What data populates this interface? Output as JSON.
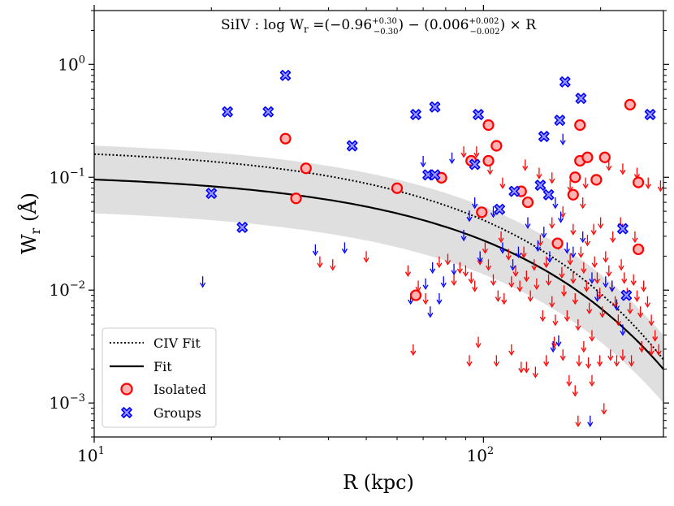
{
  "chart_data": {
    "type": "scatter",
    "title_prefix": "SiIV : log W",
    "title_sub": "r",
    "title_eq": " =(−0.96",
    "title_sup1": "+0.30",
    "title_sub1": "−0.30",
    "title_mid": ") − (0.006",
    "title_sup2": "+0.002",
    "title_sub2": "−0.002",
    "title_end": ") × R",
    "xlabel": "R (kpc)",
    "ylabel_main": "W",
    "ylabel_sub": "r",
    "ylabel_unit": " (Å)",
    "xscale": "log",
    "yscale": "log",
    "xlim": [
      10,
      290
    ],
    "ylim": [
      0.0005,
      3.0
    ],
    "x_ticks": [
      {
        "value": 10,
        "base": "10",
        "exp": "1"
      },
      {
        "value": 100,
        "base": "10",
        "exp": "2"
      }
    ],
    "y_ticks": [
      {
        "value": 0.001,
        "base": "10",
        "exp": "−3"
      },
      {
        "value": 0.01,
        "base": "10",
        "exp": "−2"
      },
      {
        "value": 0.1,
        "base": "10",
        "exp": "−1"
      },
      {
        "value": 1,
        "base": "10",
        "exp": "0"
      }
    ],
    "fit": {
      "intercept": -0.96,
      "slope": -0.006,
      "band_upper_intercept": -0.66,
      "band_lower_intercept": -1.26
    },
    "civ_fit": {
      "intercept": -0.73,
      "slope": -0.0065
    },
    "legend": {
      "position": "lower-left",
      "entries": [
        {
          "label": "CIV Fit",
          "style": "dotted"
        },
        {
          "label": "Fit",
          "style": "solid"
        },
        {
          "label": "Isolated",
          "style": "circle"
        },
        {
          "label": "Groups",
          "style": "cross"
        }
      ]
    },
    "colors": {
      "isolated": "#ff0000",
      "isolated_fill": "#ffb3b3",
      "groups": "#0000ff",
      "groups_fill": "#9999ff",
      "band": "#d9d9d9",
      "upper_red": "#ff0000",
      "upper_blue": "#0000ff"
    },
    "series": [
      {
        "name": "Isolated",
        "points": [
          [
            31,
            0.22
          ],
          [
            35,
            0.12
          ],
          [
            33,
            0.065
          ],
          [
            60,
            0.08
          ],
          [
            67,
            0.009
          ],
          [
            78,
            0.099
          ],
          [
            93,
            0.14
          ],
          [
            99,
            0.049
          ],
          [
            103,
            0.29
          ],
          [
            103,
            0.14
          ],
          [
            108,
            0.19
          ],
          [
            125,
            0.075
          ],
          [
            130,
            0.06
          ],
          [
            155,
            0.026
          ],
          [
            170,
            0.07
          ],
          [
            172,
            0.1
          ],
          [
            177,
            0.29
          ],
          [
            177,
            0.14
          ],
          [
            185,
            0.15
          ],
          [
            195,
            0.095
          ],
          [
            205,
            0.15
          ],
          [
            238,
            0.44
          ],
          [
            250,
            0.09
          ],
          [
            250,
            0.023
          ]
        ]
      },
      {
        "name": "Groups",
        "points": [
          [
            20,
            0.072
          ],
          [
            22,
            0.38
          ],
          [
            24,
            0.036
          ],
          [
            28,
            0.38
          ],
          [
            31,
            0.8
          ],
          [
            46,
            0.19
          ],
          [
            67,
            0.36
          ],
          [
            72,
            0.105
          ],
          [
            75,
            0.105
          ],
          [
            75,
            0.42
          ],
          [
            95,
            0.13
          ],
          [
            97,
            0.36
          ],
          [
            110,
            0.052
          ],
          [
            120,
            0.075
          ],
          [
            140,
            0.085
          ],
          [
            143,
            0.23
          ],
          [
            147,
            0.07
          ],
          [
            157,
            0.32
          ],
          [
            162,
            0.7
          ],
          [
            178,
            0.5
          ],
          [
            228,
            0.035
          ],
          [
            233,
            0.009
          ],
          [
            268,
            0.36
          ]
        ]
      },
      {
        "name": "Isolated upper limits",
        "points": [
          [
            89,
            0.17
          ],
          [
            96,
            0.17
          ],
          [
            104,
            0.12
          ],
          [
            112,
            0.09
          ],
          [
            128,
            0.13
          ],
          [
            139,
            0.11
          ],
          [
            150,
            0.1
          ],
          [
            167,
            0.085
          ],
          [
            183,
            0.09
          ],
          [
            210,
            0.13
          ],
          [
            228,
            0.12
          ],
          [
            248,
            0.11
          ],
          [
            265,
            0.09
          ],
          [
            285,
            0.085
          ],
          [
            38,
            0.018
          ],
          [
            41,
            0.017
          ],
          [
            50,
            0.02
          ],
          [
            64,
            0.015
          ],
          [
            68,
            0.011
          ],
          [
            71,
            0.0085
          ],
          [
            77,
            0.018
          ],
          [
            81,
            0.019
          ],
          [
            84,
            0.0125
          ],
          [
            87,
            0.016
          ],
          [
            90,
            0.015
          ],
          [
            93,
            0.013
          ],
          [
            95,
            0.011
          ],
          [
            98,
            0.019
          ],
          [
            101,
            0.024
          ],
          [
            103,
            0.017
          ],
          [
            106,
            0.0125
          ],
          [
            109,
            0.009
          ],
          [
            111,
            0.03
          ],
          [
            113,
            0.0085
          ],
          [
            116,
            0.021
          ],
          [
            118,
            0.012
          ],
          [
            121,
            0.015
          ],
          [
            124,
            0.011
          ],
          [
            127,
            0.022
          ],
          [
            129,
            0.0135
          ],
          [
            132,
            0.009
          ],
          [
            135,
            0.017
          ],
          [
            137,
            0.0115
          ],
          [
            140,
            0.028
          ],
          [
            142,
            0.006
          ],
          [
            145,
            0.018
          ],
          [
            147,
            0.0125
          ],
          [
            150,
            0.008
          ],
          [
            153,
            0.0055
          ],
          [
            156,
            0.026
          ],
          [
            159,
            0.0145
          ],
          [
            161,
            0.01
          ],
          [
            164,
            0.006
          ],
          [
            167,
            0.019
          ],
          [
            170,
            0.013
          ],
          [
            172,
            0.0085
          ],
          [
            175,
            0.005
          ],
          [
            178,
            0.022
          ],
          [
            181,
            0.016
          ],
          [
            184,
            0.011
          ],
          [
            187,
            0.007
          ],
          [
            190,
            0.004
          ],
          [
            193,
            0.018
          ],
          [
            196,
            0.013
          ],
          [
            199,
            0.0095
          ],
          [
            202,
            0.0065
          ],
          [
            206,
            0.02
          ],
          [
            210,
            0.015
          ],
          [
            214,
            0.011
          ],
          [
            218,
            0.008
          ],
          [
            222,
            0.0055
          ],
          [
            226,
            0.017
          ],
          [
            230,
            0.013
          ],
          [
            234,
            0.0095
          ],
          [
            238,
            0.007
          ],
          [
            243,
            0.0125
          ],
          [
            248,
            0.009
          ],
          [
            253,
            0.0065
          ],
          [
            258,
            0.011
          ],
          [
            264,
            0.008
          ],
          [
            270,
            0.0055
          ],
          [
            276,
            0.004
          ],
          [
            282,
            0.003
          ],
          [
            66,
            0.003
          ],
          [
            92,
            0.0024
          ],
          [
            97,
            0.0035
          ],
          [
            108,
            0.0024
          ],
          [
            118,
            0.003
          ],
          [
            125,
            0.0021
          ],
          [
            129,
            0.0021
          ],
          [
            136,
            0.0019
          ],
          [
            145,
            0.0024
          ],
          [
            152,
            0.0035
          ],
          [
            160,
            0.0027
          ],
          [
            166,
            0.0016
          ],
          [
            172,
            0.0013
          ],
          [
            176,
            0.0024
          ],
          [
            181,
            0.0032
          ],
          [
            186,
            0.0023
          ],
          [
            190,
            0.0016
          ],
          [
            199,
            0.0024
          ],
          [
            204,
            0.0009
          ],
          [
            212,
            0.0027
          ],
          [
            220,
            0.0024
          ],
          [
            228,
            0.0027
          ],
          [
            240,
            0.0024
          ],
          [
            255,
            0.0032
          ],
          [
            270,
            0.003
          ],
          [
            185,
            0.028
          ],
          [
            192,
            0.035
          ],
          [
            200,
            0.04
          ],
          [
            215,
            0.03
          ],
          [
            225,
            0.04
          ],
          [
            245,
            0.03
          ],
          [
            150,
            0.04
          ],
          [
            160,
            0.05
          ],
          [
            170,
            0.035
          ],
          [
            180,
            0.06
          ],
          [
            175,
            0.0007
          ]
        ]
      },
      {
        "name": "Groups upper limits",
        "points": [
          [
            19,
            0.012
          ],
          [
            37,
            0.023
          ],
          [
            44,
            0.024
          ],
          [
            65,
            0.0085
          ],
          [
            71,
            0.0115
          ],
          [
            73,
            0.0065
          ],
          [
            74,
            0.016
          ],
          [
            77,
            0.0085
          ],
          [
            79,
            0.012
          ],
          [
            84,
            0.0155
          ],
          [
            89,
            0.031
          ],
          [
            92,
            0.046
          ],
          [
            95,
            0.06
          ],
          [
            98,
            0.02
          ],
          [
            106,
            0.05
          ],
          [
            112,
            0.024
          ],
          [
            119,
            0.017
          ],
          [
            123,
            0.022
          ],
          [
            130,
            0.04
          ],
          [
            138,
            0.025
          ],
          [
            143,
            0.033
          ],
          [
            148,
            0.02
          ],
          [
            153,
            0.06
          ],
          [
            158,
            0.045
          ],
          [
            164,
            0.024
          ],
          [
            170,
            0.022
          ],
          [
            180,
            0.03
          ],
          [
            190,
            0.013
          ],
          [
            196,
            0.009
          ],
          [
            206,
            0.012
          ],
          [
            214,
            0.011
          ],
          [
            220,
            0.0075
          ],
          [
            228,
            0.0045
          ],
          [
            160,
            0.22
          ],
          [
            70,
            0.14
          ],
          [
            83,
            0.15
          ],
          [
            151,
            0.0032
          ],
          [
            156,
            0.0036
          ],
          [
            188,
            0.0007
          ]
        ]
      }
    ]
  }
}
